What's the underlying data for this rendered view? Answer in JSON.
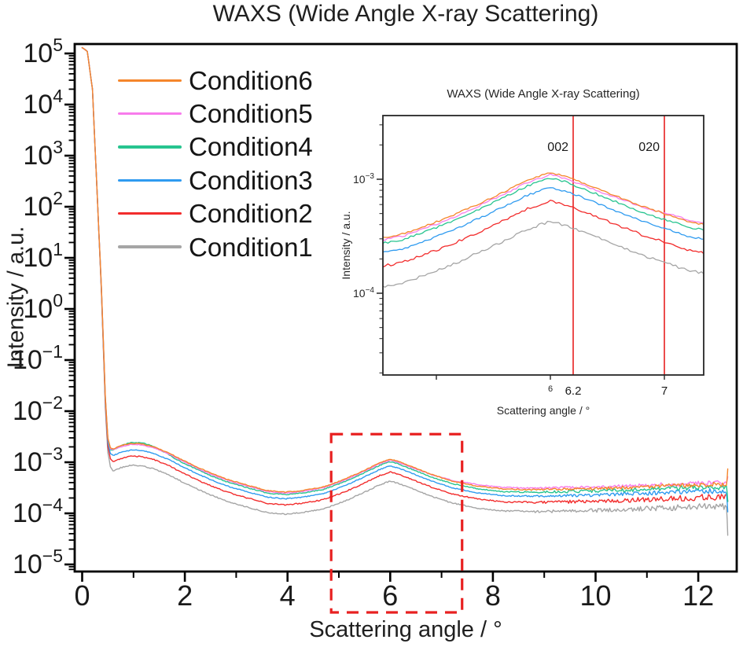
{
  "chart_data": {
    "type": "line",
    "main": {
      "title": "WAXS (Wide Angle X-ray Scattering)",
      "xlabel": "Scattering angle / °",
      "ylabel": "Intensity / a.u.",
      "x_ticks": [
        0,
        2,
        4,
        6,
        8,
        10,
        12
      ],
      "x_minor_ticks": [
        1,
        3,
        5,
        7,
        9,
        11
      ],
      "x_range": [
        -0.15,
        12.75
      ],
      "y_scale": "log",
      "y_tick_exponents": [
        5,
        4,
        3,
        2,
        1,
        0,
        -1,
        -2,
        -3,
        -4,
        -5
      ],
      "y_log_range": [
        -5.14,
        5.18
      ],
      "grid": false,
      "legend_position": "upper-left-inside",
      "highlight_box": {
        "x_range": [
          4.85,
          7.4
        ],
        "y_log_top": -2.45,
        "color": "#e82020",
        "style": "dashed"
      }
    },
    "inset": {
      "title": "WAXS (Wide Angle X-ray Scattering)",
      "xlabel": "Scattering angle / °",
      "ylabel": "Intensity / a.u.",
      "x_range": [
        4.53,
        7.34
      ],
      "y_scale": "log",
      "y_log_range": [
        -4.72,
        -2.44
      ],
      "y_tick_exponents": [
        -3,
        -4
      ],
      "x_ticks": [
        {
          "value": 5,
          "label": ""
        },
        {
          "value": 6,
          "label": "6"
        },
        {
          "value": 7,
          "label": ""
        }
      ],
      "ref_lines": [
        {
          "x": 6.2,
          "tick_label": "6.2",
          "peak_label": "002",
          "color": "#e82020"
        },
        {
          "x": 7.0,
          "tick_label": "7",
          "peak_label": "020",
          "color": "#e82020"
        }
      ]
    },
    "series": [
      {
        "label": "Condition6",
        "color": "#F5862B",
        "log_offset": 0,
        "end_spike": 0.32,
        "noise_scale": 1.0
      },
      {
        "label": "Condition5",
        "color": "#F87CEC",
        "log_offset": -0.02,
        "end_spike": 0.12,
        "noise_scale": 1.0,
        "tail_boost": {
          "x_start": 6.4,
          "x_full": 7.6,
          "amp": 0.05
        }
      },
      {
        "label": "Condition4",
        "color": "#27C48F",
        "log_offset": -0.05,
        "end_spike": -0.3,
        "noise_scale": 1.1,
        "bump_boost": {
          "x_start": 0.45,
          "x_end": 1.8,
          "amp": 0.07
        }
      },
      {
        "label": "Condition3",
        "color": "#2F9BF0",
        "log_offset": -0.13,
        "end_spike": -0.35,
        "noise_scale": 1.1
      },
      {
        "label": "Condition2",
        "color": "#F22C2C",
        "log_offset": -0.25,
        "end_spike": -0.12,
        "noise_scale": 1.4
      },
      {
        "label": "Condition1",
        "color": "#A5A5A5",
        "log_offset": -0.43,
        "end_spike": -0.55,
        "noise_scale": 1.4
      }
    ],
    "base_curve_points_x_y": [
      [
        0,
        130000
      ],
      [
        0.1,
        110000
      ],
      [
        0.2,
        20000
      ],
      [
        0.3,
        120
      ],
      [
        0.38,
        2
      ],
      [
        0.45,
        0.02
      ],
      [
        0.5,
        0.003
      ],
      [
        0.55,
        0.0019
      ],
      [
        0.62,
        0.00185
      ],
      [
        0.75,
        0.0021
      ],
      [
        0.95,
        0.00235
      ],
      [
        1.15,
        0.0023
      ],
      [
        1.4,
        0.002
      ],
      [
        1.7,
        0.0015
      ],
      [
        2.0,
        0.00105
      ],
      [
        2.4,
        0.00068
      ],
      [
        2.8,
        0.00047
      ],
      [
        3.2,
        0.00036
      ],
      [
        3.6,
        0.00028
      ],
      [
        3.95,
        0.00026
      ],
      [
        4.3,
        0.00028
      ],
      [
        4.7,
        0.00033
      ],
      [
        5.1,
        0.00046
      ],
      [
        5.5,
        0.0007
      ],
      [
        5.8,
        0.00098
      ],
      [
        6.0,
        0.00115
      ],
      [
        6.15,
        0.00105
      ],
      [
        6.45,
        0.0008
      ],
      [
        6.8,
        0.00058
      ],
      [
        7.2,
        0.00043
      ],
      [
        7.7,
        0.00034
      ],
      [
        8.2,
        0.0003
      ],
      [
        8.8,
        0.00029
      ],
      [
        9.5,
        0.0003
      ],
      [
        10.2,
        0.00031
      ],
      [
        10.9,
        0.00033
      ],
      [
        11.6,
        0.00035
      ],
      [
        12.2,
        0.00037
      ],
      [
        12.55,
        0.00036
      ]
    ],
    "series_model_note": "each condition curve = base_curve shifted by log_offset decades (offsets blend in over 0.3<x<0.6), with measurement noise growing toward high angle and a spike at the final point"
  }
}
